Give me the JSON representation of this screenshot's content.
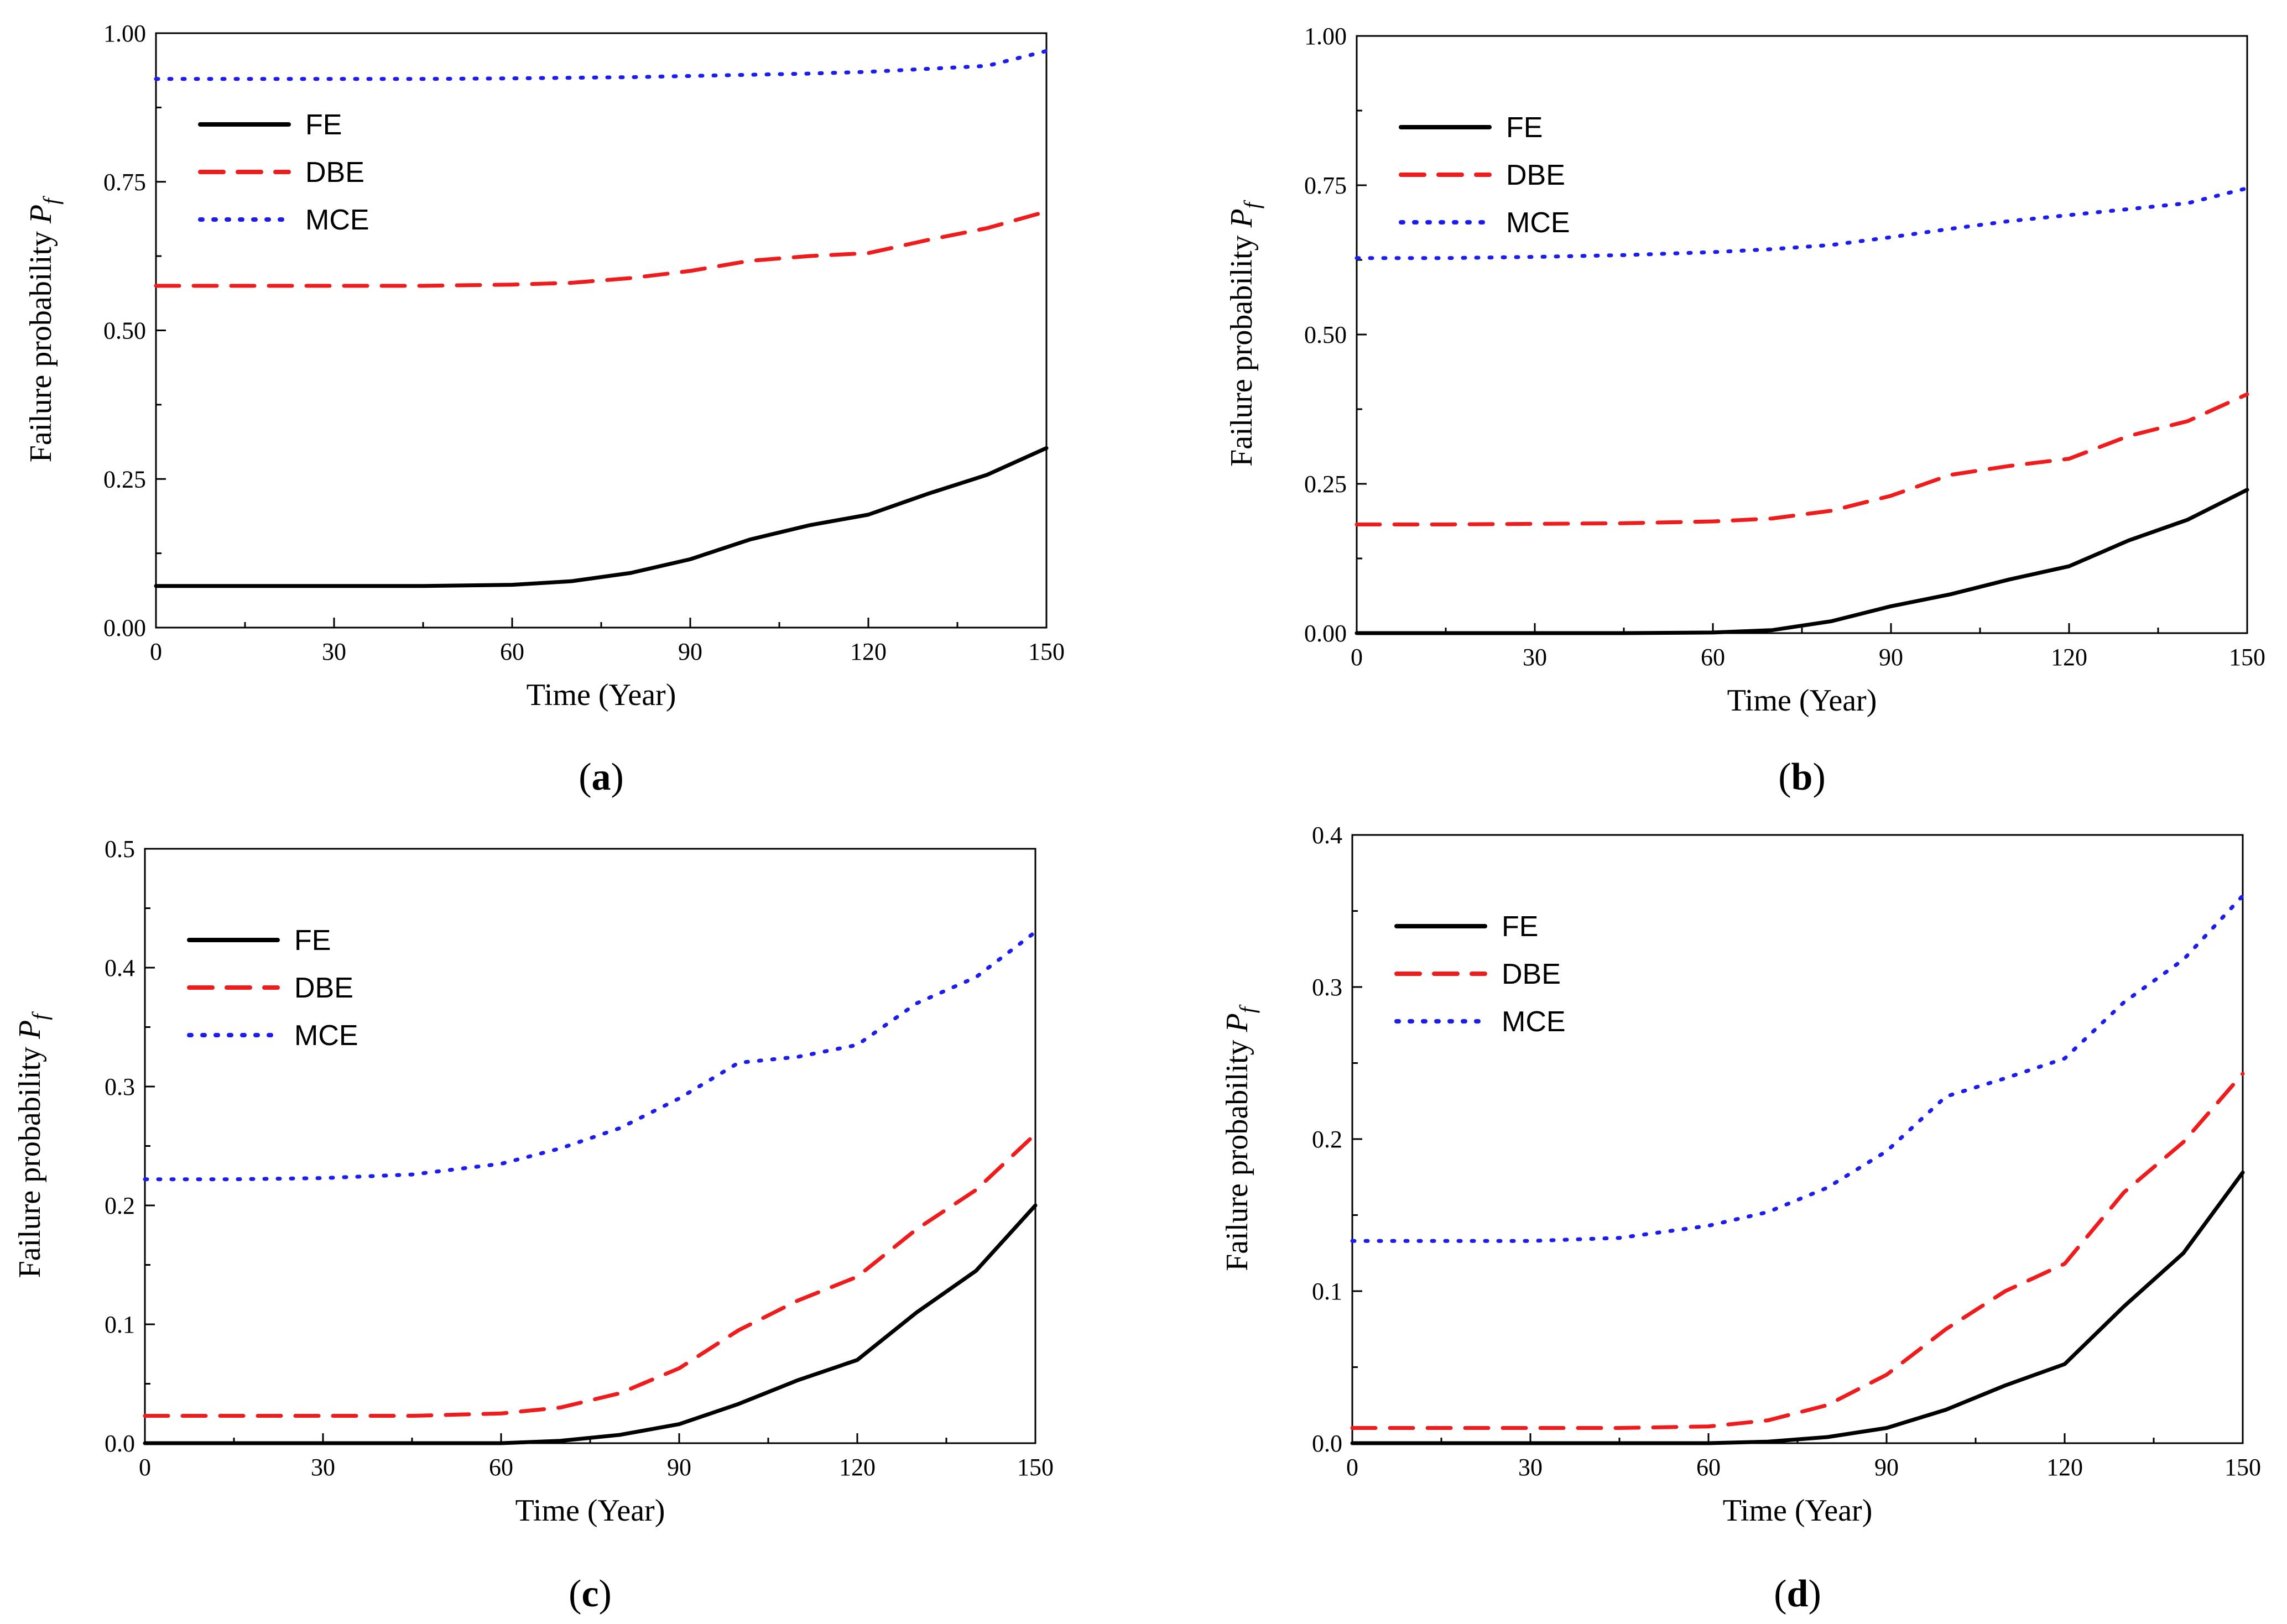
{
  "figure": {
    "series_styles": [
      {
        "name": "FE",
        "color": "#000000",
        "dash": "solid"
      },
      {
        "name": "DBE",
        "color": "#ee1c1c",
        "dash": "dashed"
      },
      {
        "name": "MCE",
        "color": "#1c1cee",
        "dash": "dotted"
      }
    ]
  },
  "chart_data": [
    {
      "type": "line",
      "caption": "a",
      "caption_open": "(",
      "caption_close": ")",
      "xlabel": "Time (Year)",
      "ylabel": "Failure probability",
      "ylabel_symbol": "P",
      "ylabel_subscript": "f",
      "xlim": [
        0,
        150
      ],
      "ylim": [
        0,
        1.0
      ],
      "x_ticks": [
        "0",
        "30",
        "60",
        "90",
        "120",
        "150"
      ],
      "y_ticks": [
        "0.00",
        "0.25",
        "0.50",
        "0.75",
        "1.00"
      ],
      "x": [
        0,
        15,
        30,
        45,
        60,
        70,
        80,
        90,
        100,
        110,
        120,
        130,
        140,
        150
      ],
      "series": [
        {
          "name": "FE",
          "values": [
            0.07,
            0.07,
            0.07,
            0.07,
            0.072,
            0.078,
            0.092,
            0.115,
            0.148,
            0.172,
            0.19,
            0.225,
            0.257,
            0.302
          ]
        },
        {
          "name": "DBE",
          "values": [
            0.575,
            0.575,
            0.575,
            0.575,
            0.577,
            0.58,
            0.588,
            0.6,
            0.617,
            0.625,
            0.63,
            0.652,
            0.672,
            0.7
          ]
        },
        {
          "name": "MCE",
          "values": [
            0.923,
            0.923,
            0.923,
            0.923,
            0.924,
            0.925,
            0.926,
            0.928,
            0.93,
            0.932,
            0.935,
            0.94,
            0.945,
            0.97
          ]
        }
      ],
      "legend": [
        "FE",
        "DBE",
        "MCE"
      ]
    },
    {
      "type": "line",
      "caption": "b",
      "caption_open": "(",
      "caption_close": ")",
      "xlabel": "Time (Year)",
      "ylabel": "Failure probability",
      "ylabel_symbol": "P",
      "ylabel_subscript": "f",
      "xlim": [
        0,
        150
      ],
      "ylim": [
        0,
        1.0
      ],
      "x_ticks": [
        "0",
        "30",
        "60",
        "90",
        "120",
        "150"
      ],
      "y_ticks": [
        "0.00",
        "0.25",
        "0.50",
        "0.75",
        "1.00"
      ],
      "x": [
        0,
        15,
        30,
        45,
        60,
        70,
        80,
        90,
        100,
        110,
        120,
        130,
        140,
        150
      ],
      "series": [
        {
          "name": "FE",
          "values": [
            0.0,
            0.0,
            0.0,
            0.0,
            0.001,
            0.005,
            0.02,
            0.045,
            0.065,
            0.09,
            0.112,
            0.155,
            0.19,
            0.24
          ]
        },
        {
          "name": "DBE",
          "values": [
            0.182,
            0.182,
            0.183,
            0.184,
            0.187,
            0.192,
            0.205,
            0.23,
            0.265,
            0.28,
            0.292,
            0.33,
            0.355,
            0.4
          ]
        },
        {
          "name": "MCE",
          "values": [
            0.628,
            0.628,
            0.63,
            0.633,
            0.638,
            0.643,
            0.65,
            0.663,
            0.677,
            0.69,
            0.7,
            0.71,
            0.72,
            0.745
          ]
        }
      ],
      "legend": [
        "FE",
        "DBE",
        "MCE"
      ]
    },
    {
      "type": "line",
      "caption": "c",
      "caption_open": "(",
      "caption_close": ")",
      "xlabel": "Time (Year)",
      "ylabel": "Failure probability",
      "ylabel_symbol": "P",
      "ylabel_subscript": "f",
      "xlim": [
        0,
        150
      ],
      "ylim": [
        0,
        0.5
      ],
      "x_ticks": [
        "0",
        "30",
        "60",
        "90",
        "120",
        "150"
      ],
      "y_ticks": [
        "0.0",
        "0.1",
        "0.2",
        "0.3",
        "0.4",
        "0.5"
      ],
      "x": [
        0,
        15,
        30,
        45,
        60,
        70,
        80,
        90,
        100,
        110,
        120,
        130,
        140,
        150
      ],
      "series": [
        {
          "name": "FE",
          "values": [
            0.0,
            0.0,
            0.0,
            0.0,
            0.0,
            0.002,
            0.007,
            0.016,
            0.033,
            0.053,
            0.07,
            0.11,
            0.145,
            0.2
          ]
        },
        {
          "name": "DBE",
          "values": [
            0.023,
            0.023,
            0.023,
            0.023,
            0.025,
            0.03,
            0.042,
            0.063,
            0.095,
            0.12,
            0.14,
            0.18,
            0.213,
            0.26
          ]
        },
        {
          "name": "MCE",
          "values": [
            0.222,
            0.222,
            0.223,
            0.226,
            0.235,
            0.248,
            0.265,
            0.29,
            0.32,
            0.325,
            0.335,
            0.37,
            0.392,
            0.43
          ]
        }
      ],
      "legend": [
        "FE",
        "DBE",
        "MCE"
      ]
    },
    {
      "type": "line",
      "caption": "d",
      "caption_open": "(",
      "caption_close": ")",
      "xlabel": "Time (Year)",
      "ylabel": "Failure probability",
      "ylabel_symbol": "P",
      "ylabel_subscript": "f",
      "xlim": [
        0,
        150
      ],
      "ylim": [
        0,
        0.4
      ],
      "x_ticks": [
        "0",
        "30",
        "60",
        "90",
        "120",
        "150"
      ],
      "y_ticks": [
        "0.0",
        "0.1",
        "0.2",
        "0.3",
        "0.4"
      ],
      "x": [
        0,
        15,
        30,
        45,
        60,
        70,
        80,
        90,
        100,
        110,
        120,
        130,
        140,
        150
      ],
      "series": [
        {
          "name": "FE",
          "values": [
            0.0,
            0.0,
            0.0,
            0.0,
            0.0,
            0.001,
            0.004,
            0.01,
            0.022,
            0.038,
            0.052,
            0.09,
            0.125,
            0.178
          ]
        },
        {
          "name": "DBE",
          "values": [
            0.01,
            0.01,
            0.01,
            0.01,
            0.011,
            0.015,
            0.025,
            0.045,
            0.075,
            0.1,
            0.118,
            0.165,
            0.198,
            0.243
          ]
        },
        {
          "name": "MCE",
          "values": [
            0.133,
            0.133,
            0.133,
            0.135,
            0.143,
            0.152,
            0.168,
            0.192,
            0.228,
            0.24,
            0.253,
            0.29,
            0.318,
            0.36
          ]
        }
      ],
      "legend": [
        "FE",
        "DBE",
        "MCE"
      ]
    }
  ]
}
